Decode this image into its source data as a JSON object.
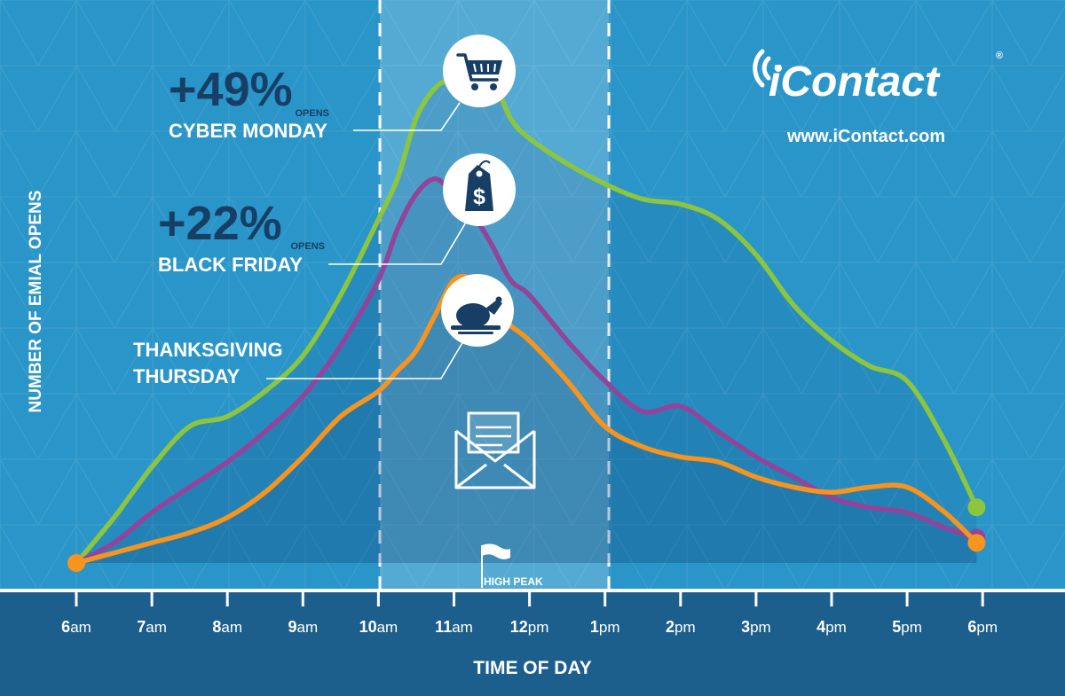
{
  "brand": {
    "name": "iContact",
    "mark": "®",
    "url": "www.iContact.com"
  },
  "icons": [
    "shopping-cart-icon",
    "price-tag-icon",
    "turkey-platter-icon",
    "email-envelope-icon",
    "flag-icon"
  ],
  "colors": {
    "background": "#2a95c8",
    "axis_band": "#1d5f8c",
    "label_dark": "#173f66",
    "cyber_monday": "#8cc63f",
    "black_friday": "#93449a",
    "thanksgiving": "#f7941d"
  },
  "annotations": {
    "cyber_monday": {
      "pct": "+49%",
      "opens": "OPENS",
      "label": "CYBER MONDAY"
    },
    "black_friday": {
      "pct": "+22%",
      "opens": "OPENS",
      "label": "BLACK FRIDAY"
    },
    "thanksgiving": {
      "line1": "THANKSGIVING",
      "line2": "THURSDAY"
    },
    "peak": "HIGH PEAK"
  },
  "chart_data": {
    "type": "line",
    "title": "",
    "xlabel": "TIME OF DAY",
    "ylabel": "NUMBER OF EMIAL OPENS",
    "x": [
      6,
      6.5,
      7,
      7.5,
      8,
      8.5,
      9,
      9.5,
      10,
      10.25,
      10.5,
      10.75,
      11,
      11.25,
      11.5,
      11.75,
      12,
      12.5,
      13,
      13.5,
      14,
      14.5,
      15,
      15.5,
      16,
      16.5,
      17,
      17.5,
      17.92
    ],
    "tick_labels": [
      {
        "hour": "6",
        "suffix": "am"
      },
      {
        "hour": "7",
        "suffix": "am"
      },
      {
        "hour": "8",
        "suffix": "am"
      },
      {
        "hour": "9",
        "suffix": "am"
      },
      {
        "hour": "10",
        "suffix": "am"
      },
      {
        "hour": "11",
        "suffix": "am"
      },
      {
        "hour": "12",
        "suffix": "pm"
      },
      {
        "hour": "1",
        "suffix": "pm"
      },
      {
        "hour": "2",
        "suffix": "pm"
      },
      {
        "hour": "3",
        "suffix": "pm"
      },
      {
        "hour": "4",
        "suffix": "pm"
      },
      {
        "hour": "5",
        "suffix": "pm"
      },
      {
        "hour": "6",
        "suffix": "pm"
      }
    ],
    "ylim": [
      0,
      100
    ],
    "highlight_band": [
      10,
      13
    ],
    "series": [
      {
        "key": "cyber_monday",
        "values": [
          0,
          9,
          19,
          27,
          29,
          34,
          41,
          53,
          68,
          76,
          88,
          94,
          96,
          97,
          96,
          88,
          84,
          79,
          75,
          72,
          71,
          68,
          61,
          51,
          44,
          39,
          36,
          24,
          11
        ]
      },
      {
        "key": "black_friday",
        "values": [
          0,
          4,
          10,
          15,
          20,
          26,
          33,
          43,
          56,
          66,
          73,
          76,
          73,
          69,
          63,
          56,
          53,
          44,
          36,
          30,
          31,
          26,
          21,
          17,
          13,
          11,
          10,
          7,
          5
        ]
      },
      {
        "key": "thanksgiving",
        "values": [
          0,
          2,
          4,
          6,
          9,
          14,
          21,
          29,
          34,
          38,
          42,
          49,
          56,
          56,
          51,
          47,
          44,
          36,
          27,
          23,
          21,
          20,
          17,
          15,
          14,
          15,
          15,
          10,
          4
        ]
      }
    ]
  }
}
